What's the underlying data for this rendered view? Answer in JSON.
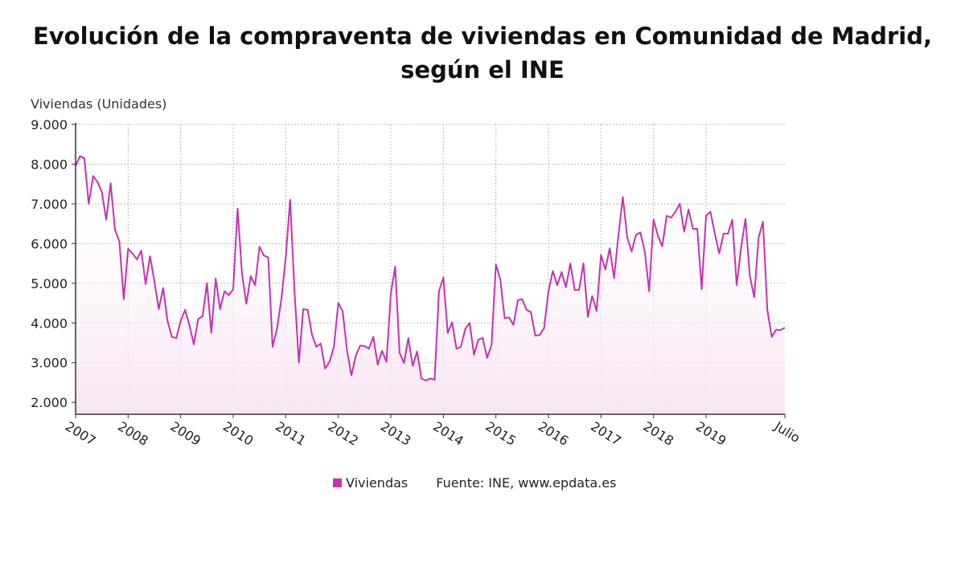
{
  "title_line1": "Evolución de la compraventa de viviendas en Comunidad de Madrid,",
  "title_line2": "según el INE",
  "colors": {
    "series": "#c831b0",
    "fill": "#f8e4f3",
    "grid": "#b8b8b8",
    "axis": "#333333"
  },
  "legend": {
    "series_label": "Viviendas",
    "source": "Fuente: INE, www.epdata.es"
  },
  "chart_data": {
    "type": "area",
    "title": "Evolución de la compraventa de viviendas en Comunidad de Madrid, según el INE",
    "ylabel": "Viviendas (Unidades)",
    "xlabel": "",
    "ylim": [
      1700,
      9000
    ],
    "yticks": [
      2000,
      3000,
      4000,
      5000,
      6000,
      7000,
      8000,
      9000
    ],
    "ytick_labels": [
      "2.000",
      "3.000",
      "4.000",
      "5.000",
      "6.000",
      "7.000",
      "8.000",
      "9.000"
    ],
    "xtick_labels": [
      "2007",
      "2008",
      "2009",
      "2010",
      "2011",
      "2012",
      "2013",
      "2014",
      "2015",
      "2016",
      "2017",
      "2018",
      "2019",
      "Julio"
    ],
    "xtick_positions": [
      0,
      12,
      24,
      36,
      48,
      60,
      72,
      84,
      96,
      108,
      120,
      132,
      144,
      162
    ],
    "grid": true,
    "legend_position": "bottom",
    "series": [
      {
        "name": "Viviendas",
        "values": [
          7950,
          8200,
          8150,
          7000,
          7700,
          7550,
          7300,
          6600,
          7520,
          6350,
          6050,
          4600,
          5870,
          5750,
          5600,
          5820,
          4980,
          5680,
          5050,
          4350,
          4880,
          4050,
          3650,
          3620,
          4050,
          4330,
          3950,
          3460,
          4100,
          4170,
          5000,
          3750,
          5120,
          4350,
          4800,
          4700,
          4850,
          6880,
          5250,
          4480,
          5180,
          4950,
          5920,
          5700,
          5650,
          3400,
          3850,
          4600,
          5650,
          7100,
          4800,
          3000,
          4350,
          4330,
          3700,
          3400,
          3480,
          2850,
          3020,
          3400,
          4500,
          4300,
          3300,
          2680,
          3180,
          3430,
          3420,
          3350,
          3650,
          2950,
          3300,
          3020,
          4740,
          5420,
          3250,
          2990,
          3620,
          2920,
          3280,
          2600,
          2550,
          2600,
          2570,
          4800,
          5140,
          3750,
          4020,
          3350,
          3400,
          3850,
          4000,
          3200,
          3580,
          3620,
          3120,
          3450,
          5470,
          5100,
          4120,
          4140,
          3950,
          4570,
          4600,
          4330,
          4270,
          3680,
          3700,
          3870,
          4800,
          5310,
          4950,
          5280,
          4900,
          5500,
          4830,
          4830,
          5500,
          4150,
          4680,
          4300,
          5710,
          5350,
          5880,
          5130,
          6230,
          7170,
          6150,
          5800,
          6220,
          6280,
          5800,
          4800,
          6600,
          6200,
          5930,
          6700,
          6650,
          6800,
          7000,
          6300,
          6860,
          6370,
          6370,
          4850,
          6700,
          6800,
          6250,
          5750,
          6250,
          6250,
          6600,
          4950,
          5900,
          6620,
          5180,
          4650,
          6150,
          6550,
          4330,
          3650,
          3830,
          3820,
          3880
        ]
      }
    ]
  }
}
